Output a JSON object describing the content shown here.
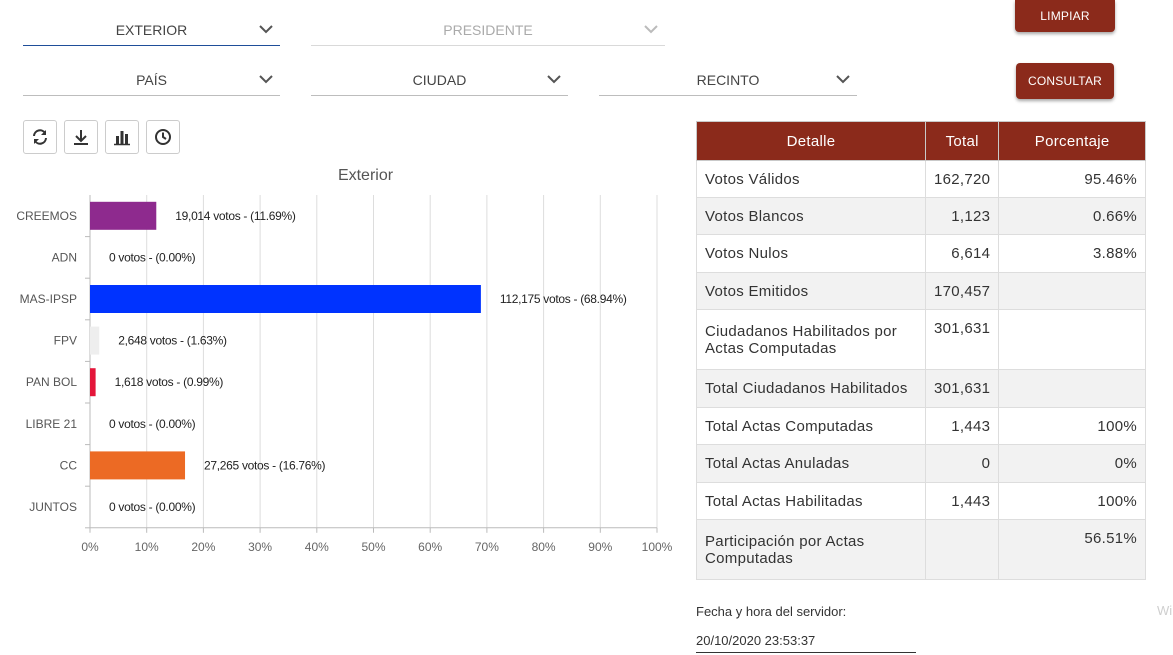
{
  "filters": {
    "ambito": "EXTERIOR",
    "eleccion": "PRESIDENTE",
    "pais": "PAÍS",
    "ciudad": "CIUDAD",
    "recinto": "RECINTO"
  },
  "buttons": {
    "limpiar": "LIMPIAR",
    "consultar": "CONSULTAR"
  },
  "toolbar": [
    "refresh-icon",
    "download-icon",
    "bar-chart-icon",
    "clock-icon"
  ],
  "chart_data": {
    "type": "bar",
    "orientation": "horizontal",
    "title": "Exterior",
    "categories": [
      "CREEMOS",
      "ADN",
      "MAS-IPSP",
      "FPV",
      "PAN BOL",
      "LIBRE 21",
      "CC",
      "JUNTOS"
    ],
    "values": [
      11.69,
      0.0,
      68.94,
      1.63,
      0.99,
      0.0,
      16.76,
      0.0
    ],
    "labels": [
      "19,014 votos - (11.69%)",
      "0 votos - (0.00%)",
      "112,175 votos - (68.94%)",
      "2,648 votos - (1.63%)",
      "1,618 votos - (0.99%)",
      "0 votos - (0.00%)",
      "27,265 votos - (16.76%)",
      "0 votos - (0.00%)"
    ],
    "colors": [
      "#8e2a8e",
      "#cccccc",
      "#0033ff",
      "#eeeeee",
      "#e4163a",
      "#cccccc",
      "#ec6a24",
      "#cccccc"
    ],
    "xticks": [
      "0%",
      "10%",
      "20%",
      "30%",
      "40%",
      "50%",
      "60%",
      "70%",
      "80%",
      "90%",
      "100%"
    ],
    "xlim": [
      0,
      100
    ],
    "grid": true
  },
  "table": {
    "headers": [
      "Detalle",
      "Total",
      "Porcentaje"
    ],
    "rows": [
      [
        "Votos Válidos",
        "162,720",
        "95.46%"
      ],
      [
        "Votos Blancos",
        "1,123",
        "0.66%"
      ],
      [
        "Votos Nulos",
        "6,614",
        "3.88%"
      ],
      [
        "Votos Emitidos",
        "170,457",
        ""
      ],
      [
        "Ciudadanos Habilitados por Actas Computadas",
        "301,631",
        ""
      ],
      [
        "Total Ciudadanos Habilitados",
        "301,631",
        ""
      ],
      [
        "Total Actas Computadas",
        "1,443",
        "100%"
      ],
      [
        "Total Actas Anuladas",
        "0",
        "0%"
      ],
      [
        "Total Actas Habilitadas",
        "1,443",
        "100%"
      ],
      [
        "Participación por Actas Computadas",
        "",
        "56.51%"
      ]
    ]
  },
  "server": {
    "label": "Fecha y hora del servidor:",
    "datetime": "20/10/2020 23:53:37"
  },
  "edge_text": "Wi"
}
